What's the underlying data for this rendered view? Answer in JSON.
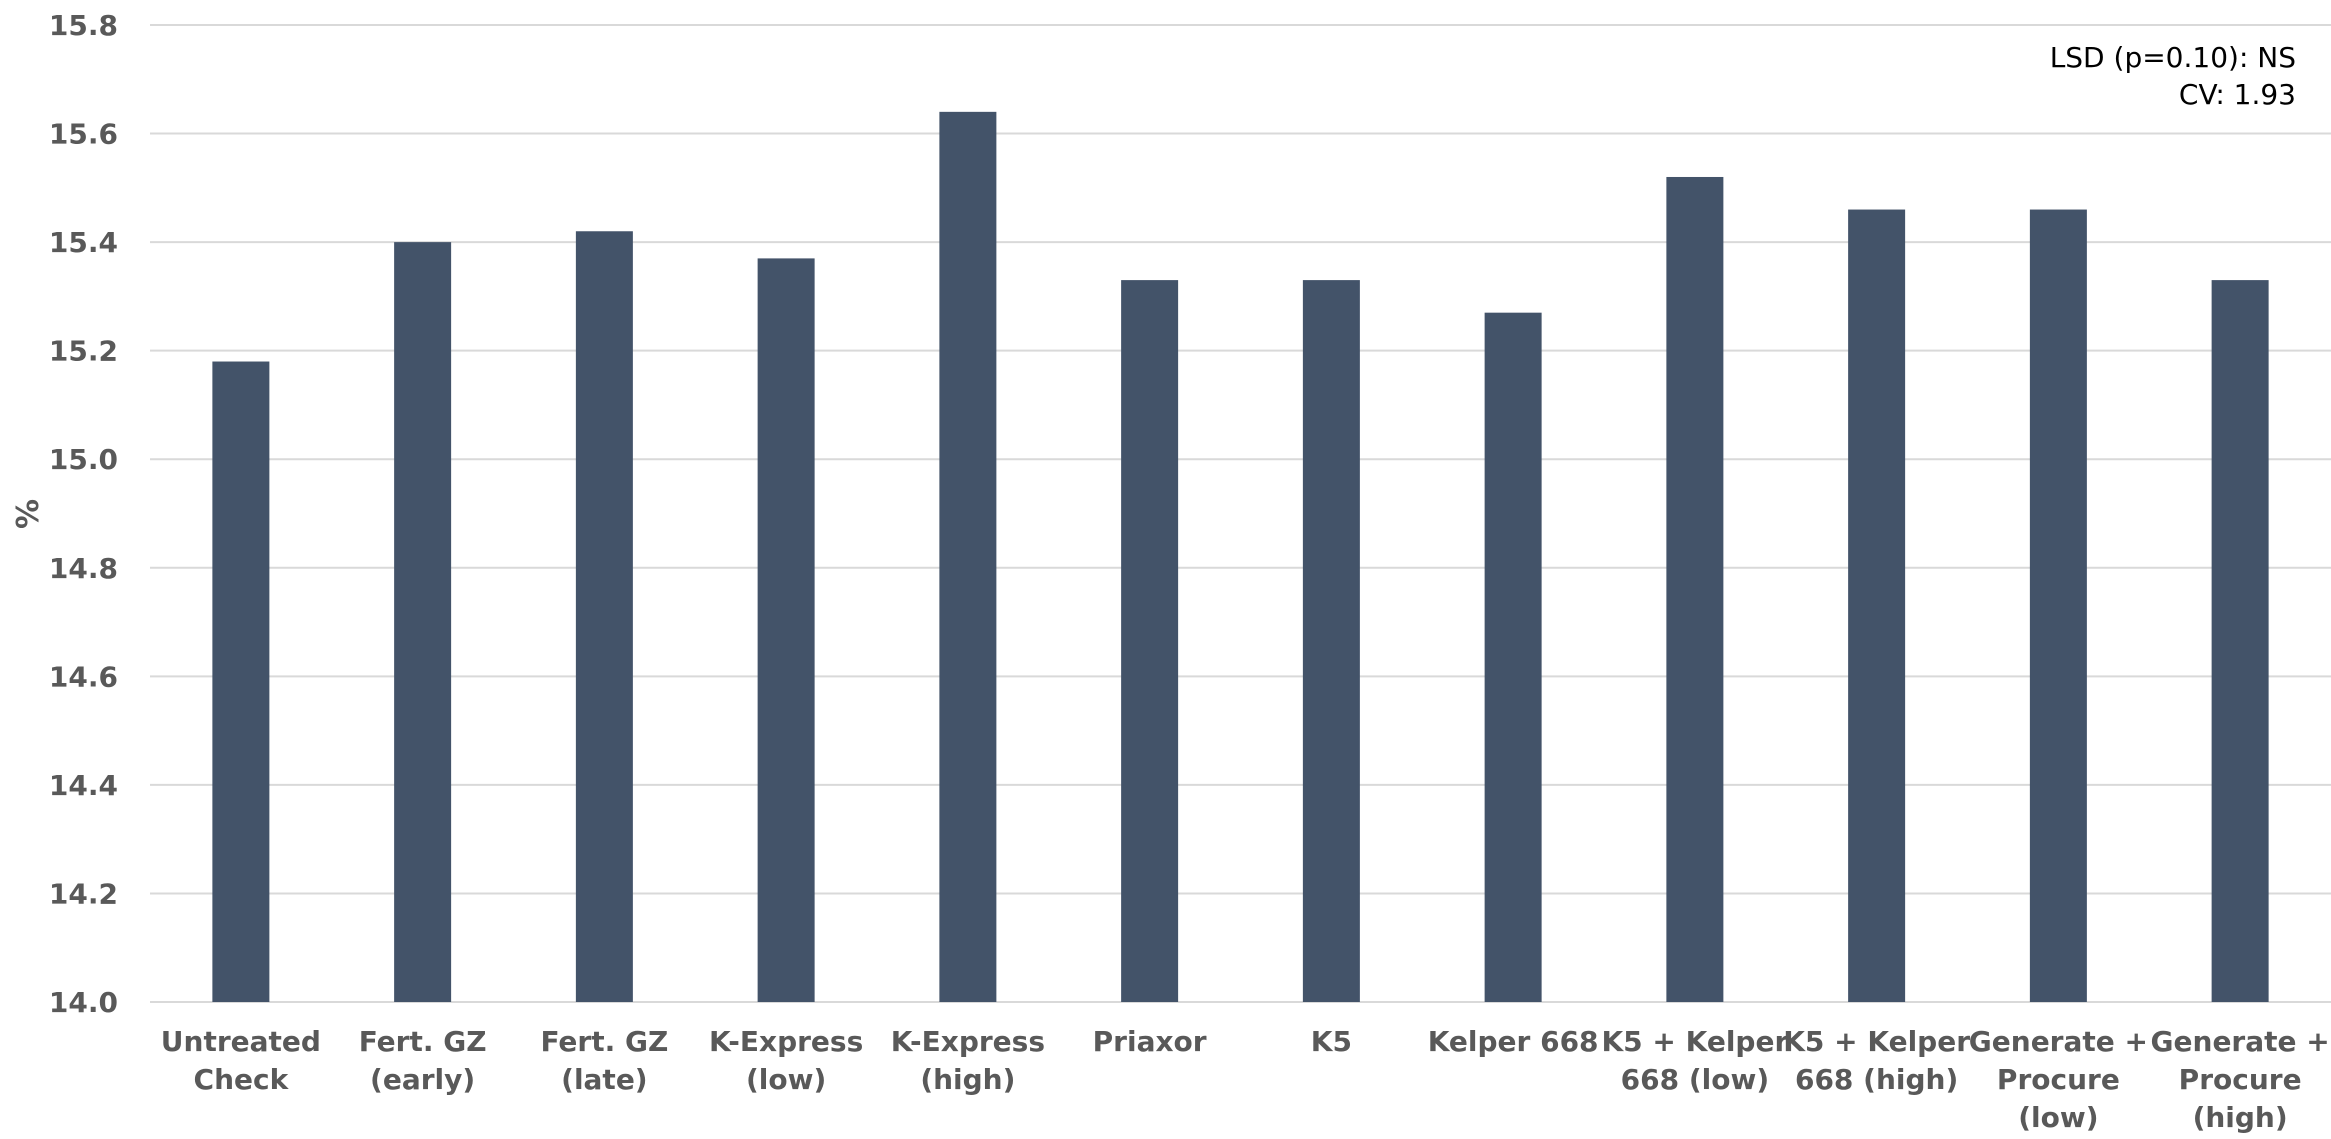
{
  "chart_data": {
    "type": "bar",
    "title": "",
    "xlabel": "",
    "ylabel": "%",
    "ylim": [
      14.0,
      15.8
    ],
    "yticks": [
      "14.0",
      "14.2",
      "14.4",
      "14.6",
      "14.8",
      "15.0",
      "15.2",
      "15.4",
      "15.6",
      "15.8"
    ],
    "grid": true,
    "legend": "none",
    "categories": [
      [
        "Untreated",
        "Check"
      ],
      [
        "Fert. GZ",
        "(early)"
      ],
      [
        "Fert. GZ",
        "(late)"
      ],
      [
        "K-Express",
        "(low)"
      ],
      [
        "K-Express",
        "(high)"
      ],
      [
        "Priaxor"
      ],
      [
        "K5"
      ],
      [
        "Kelper 668"
      ],
      [
        "K5 + Kelper",
        "668 (low)"
      ],
      [
        "K5 + Kelper",
        "668 (high)"
      ],
      [
        "Generate +",
        "Procure",
        "(low)"
      ],
      [
        "Generate +",
        "Procure",
        "(high)"
      ]
    ],
    "values": [
      15.18,
      15.4,
      15.42,
      15.37,
      15.64,
      15.33,
      15.33,
      15.27,
      15.52,
      15.46,
      15.46,
      15.33
    ],
    "bar_color": "#435369",
    "grid_color": "#d9d9d9",
    "annotations": {
      "lsd": "LSD (p=0.10):  NS",
      "cv": "CV:  1.93"
    }
  }
}
